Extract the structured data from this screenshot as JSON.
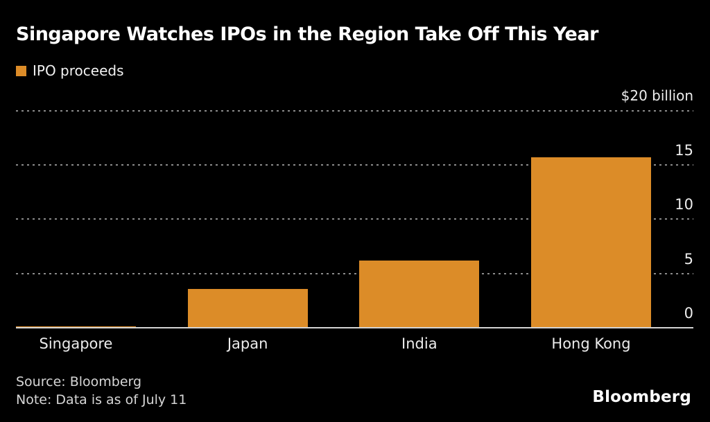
{
  "title": "Singapore Watches IPOs in the Region Take Off This Year",
  "legend": {
    "label": "IPO proceeds",
    "swatch_color": "#DC8C28"
  },
  "axis": {
    "top_label": "$20 billion"
  },
  "chart_data": {
    "type": "bar",
    "title": "Singapore Watches IPOs in the Region Take Off This Year",
    "series_name": "IPO proceeds",
    "categories": [
      "Singapore",
      "Japan",
      "India",
      "Hong Kong"
    ],
    "values": [
      0.1,
      3.6,
      6.2,
      15.7
    ],
    "unit_label": "$20 billion",
    "yticks": [
      0,
      5,
      10,
      15
    ],
    "grid_values": [
      5,
      10,
      15,
      20
    ],
    "ylim": [
      0,
      20
    ],
    "bar_color": "#DC8C28",
    "grid_on": true,
    "legend_position": "top-left"
  },
  "footer": {
    "source": "Source: Bloomberg",
    "note": "Note: Data is as of July 11",
    "logo": "Bloomberg"
  }
}
